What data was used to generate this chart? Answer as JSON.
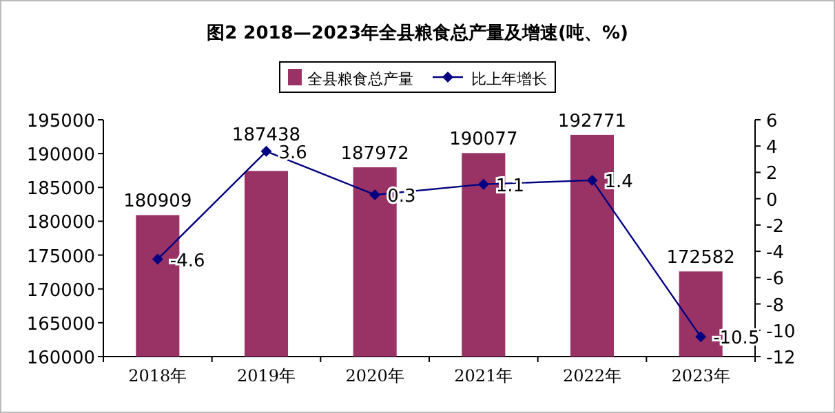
{
  "chart_data": {
    "type": "bar",
    "title": "图2  2018—2023年全县粮食总产量及增速(吨、%)",
    "categories": [
      "2018年",
      "2019年",
      "2020年",
      "2021年",
      "2022年",
      "2023年"
    ],
    "series": [
      {
        "name": "全县粮食总产量",
        "color": "#993366",
        "values": [
          180909,
          187438,
          187972,
          190077,
          192771,
          172582
        ]
      },
      {
        "name": "比上年增长",
        "type": "line",
        "axis": "y2",
        "color": "#000080",
        "values": [
          -4.6,
          3.6,
          0.3,
          1.1,
          1.4,
          -10.5
        ]
      }
    ],
    "ylim": [
      160000,
      195000
    ],
    "yticks": [
      160000,
      165000,
      170000,
      175000,
      180000,
      185000,
      190000,
      195000
    ],
    "y2lim": [
      -12,
      6
    ],
    "y2ticks": [
      -12,
      -10,
      -8,
      -6,
      -4,
      -2,
      0,
      2,
      4,
      6
    ],
    "marker": "diamond",
    "data_labels": true,
    "legend": "top"
  }
}
